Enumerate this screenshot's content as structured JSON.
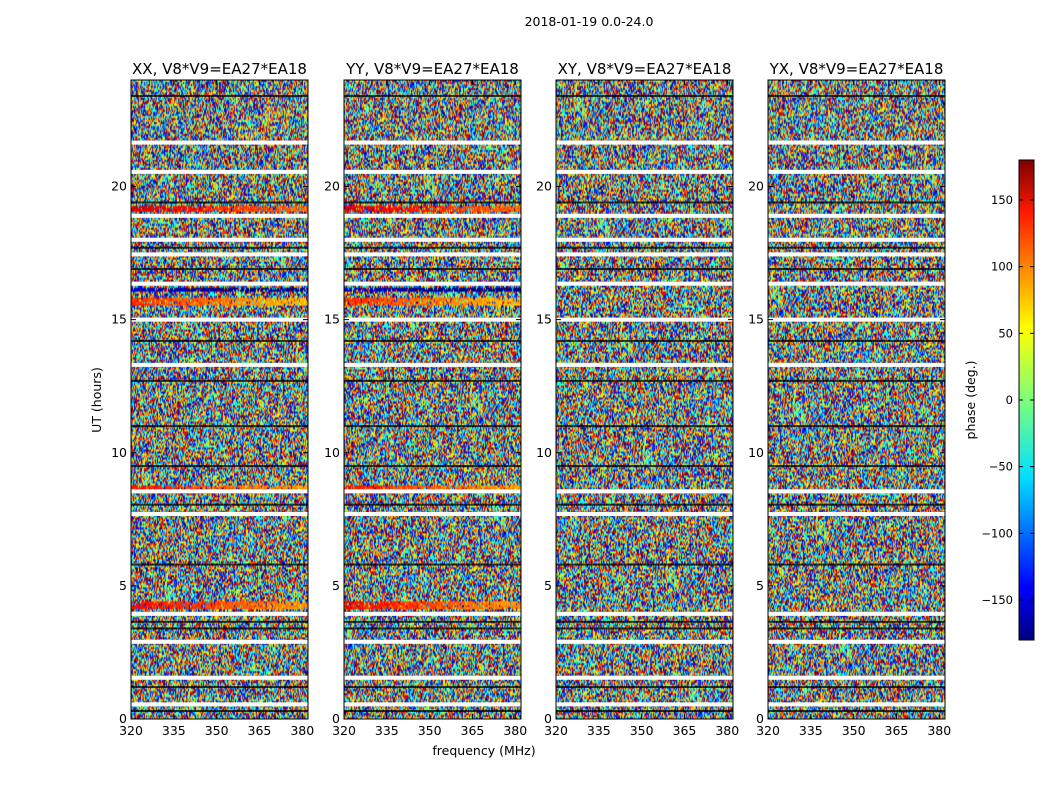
{
  "figure_title": "2018-01-19 0.0-24.0",
  "chart_data": {
    "type": "heatmap",
    "suptitle": "2018-01-19 0.0-24.0",
    "xlabel": "frequency (MHz)",
    "ylabel": "UT (hours)",
    "xlim": [
      320,
      382
    ],
    "ylim": [
      0,
      24
    ],
    "xticks": [
      320,
      335,
      350,
      365,
      380
    ],
    "yticks": [
      0,
      5,
      10,
      15,
      20
    ],
    "panels": [
      {
        "title": "XX, V8*V9=EA27*EA18",
        "polarization": "XX"
      },
      {
        "title": "YY, V8*V9=EA27*EA18",
        "polarization": "YY"
      },
      {
        "title": "XY, V8*V9=EA27*EA18",
        "polarization": "XY"
      },
      {
        "title": "YX, V8*V9=EA27*EA18",
        "polarization": "YX"
      }
    ],
    "colorbar": {
      "label": "phase (deg.)",
      "colormap": "jet",
      "range": [
        -180,
        180
      ],
      "ticks": [
        -150,
        -100,
        -50,
        0,
        50,
        100,
        150
      ],
      "tick_labels": [
        "−150",
        "−100",
        "−50",
        "0",
        "50",
        "100",
        "150"
      ]
    },
    "gap_hours": [
      0.55,
      1.55,
      2.9,
      3.95,
      7.7,
      8.55,
      13.3,
      15.0,
      16.35,
      17.45,
      18.0,
      18.9,
      20.55,
      21.65
    ],
    "strong_feature_bands": [
      {
        "ut": [
          4.2,
          4.45
        ],
        "phase_deg": 135,
        "panels": [
          "XX",
          "YY"
        ]
      },
      {
        "ut": [
          8.65,
          8.8
        ],
        "phase_deg": 130,
        "panels": [
          "XX",
          "YY"
        ]
      },
      {
        "ut": [
          15.6,
          15.85
        ],
        "phase_deg": 120,
        "panels": [
          "XX",
          "YY"
        ]
      },
      {
        "ut": [
          19.1,
          19.3
        ],
        "phase_deg": 150,
        "panels": [
          "XX",
          "YY"
        ]
      },
      {
        "ut": [
          16.1,
          16.25
        ],
        "phase_deg": -150,
        "panels": [
          "XX",
          "YY"
        ]
      }
    ]
  }
}
